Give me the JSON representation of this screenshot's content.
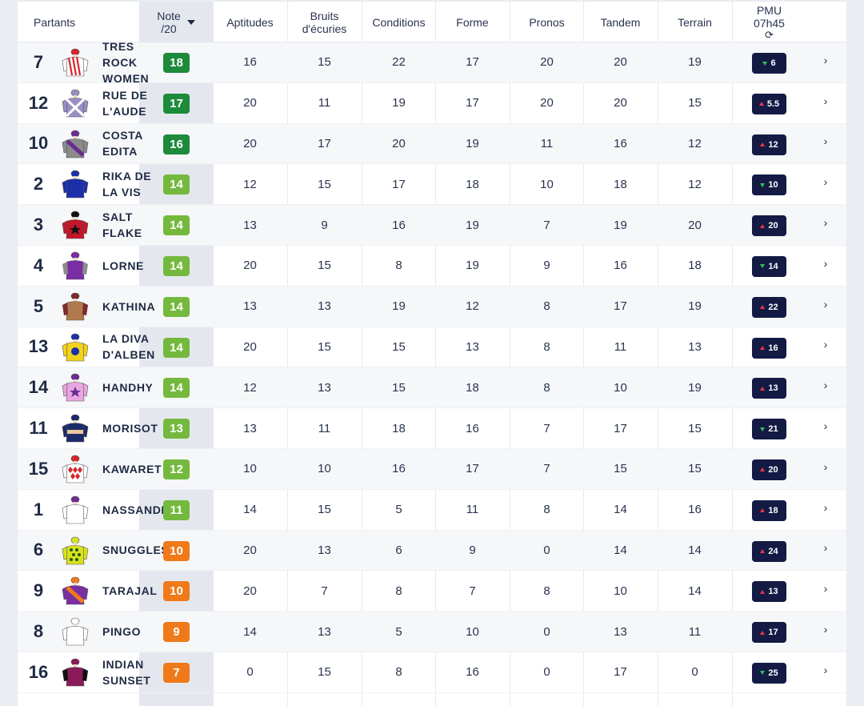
{
  "header": {
    "partants": "Partants",
    "note_line1": "Note",
    "note_line2": "/20",
    "aptitudes": "Aptitudes",
    "bruits_line1": "Bruits",
    "bruits_line2": "d'écuries",
    "conditions": "Conditions",
    "forme": "Forme",
    "pronos": "Pronos",
    "tandem": "Tandem",
    "terrain": "Terrain",
    "pmu_line1": "PMU",
    "pmu_line2": "07h45",
    "refresh_icon": "refresh-icon"
  },
  "colors": {
    "note_dark_green": "#1e8a3c",
    "note_green": "#74b93d",
    "note_orange": "#f07a1a",
    "odds_bg": "#131a44",
    "odds_up": "#e8364b",
    "odds_down": "#2fbf5a"
  },
  "runners": [
    {
      "num": "7",
      "name": "TRES ROCK WOMEN",
      "note": "18",
      "note_level": "dark",
      "aptitudes": "16",
      "bruits": "15",
      "conditions": "22",
      "forme": "17",
      "pronos": "20",
      "tandem": "20",
      "terrain": "19",
      "odds": "6",
      "trend": "down",
      "silk": {
        "body": "#ffffff",
        "stripe": "#d6262e",
        "cap": "#d6262e",
        "pattern": "stripes"
      }
    },
    {
      "num": "12",
      "name": "RUE DE L'AUDE",
      "note": "17",
      "note_level": "dark",
      "aptitudes": "20",
      "bruits": "11",
      "conditions": "19",
      "forme": "17",
      "pronos": "20",
      "tandem": "20",
      "terrain": "15",
      "odds": "5.5",
      "trend": "up",
      "silk": {
        "body": "#9a8fc4",
        "stripe": "#ffffff",
        "cap": "#9a8fc4",
        "pattern": "cross"
      }
    },
    {
      "num": "10",
      "name": "COSTA EDITA",
      "note": "16",
      "note_level": "dark",
      "aptitudes": "20",
      "bruits": "17",
      "conditions": "20",
      "forme": "19",
      "pronos": "11",
      "tandem": "16",
      "terrain": "12",
      "odds": "12",
      "trend": "up",
      "silk": {
        "body": "#8b8b8b",
        "stripe": "#6a2c91",
        "cap": "#6a2c91",
        "pattern": "sash"
      }
    },
    {
      "num": "2",
      "name": "RIKA DE LA VIS",
      "note": "14",
      "note_level": "green",
      "aptitudes": "12",
      "bruits": "15",
      "conditions": "17",
      "forme": "18",
      "pronos": "10",
      "tandem": "18",
      "terrain": "12",
      "odds": "10",
      "trend": "down",
      "silk": {
        "body": "#1a2fa8",
        "stripe": "#1a2fa8",
        "cap": "#1a2fa8",
        "pattern": "plain"
      }
    },
    {
      "num": "3",
      "name": "SALT FLAKE",
      "note": "14",
      "note_level": "green",
      "aptitudes": "13",
      "bruits": "9",
      "conditions": "16",
      "forme": "19",
      "pronos": "7",
      "tandem": "19",
      "terrain": "20",
      "odds": "20",
      "trend": "up",
      "silk": {
        "body": "#c4162a",
        "stripe": "#111111",
        "cap": "#111111",
        "pattern": "star"
      }
    },
    {
      "num": "4",
      "name": "LORNE",
      "note": "14",
      "note_level": "green",
      "aptitudes": "20",
      "bruits": "15",
      "conditions": "8",
      "forme": "19",
      "pronos": "9",
      "tandem": "16",
      "terrain": "18",
      "odds": "14",
      "trend": "down",
      "silk": {
        "body": "#7a2ea6",
        "stripe": "#8b8b8b",
        "cap": "#7a2ea6",
        "pattern": "sleeves"
      }
    },
    {
      "num": "5",
      "name": "KATHINA",
      "note": "14",
      "note_level": "green",
      "aptitudes": "13",
      "bruits": "13",
      "conditions": "19",
      "forme": "12",
      "pronos": "8",
      "tandem": "17",
      "terrain": "19",
      "odds": "22",
      "trend": "up",
      "silk": {
        "body": "#b07a4e",
        "stripe": "#7a2b2b",
        "cap": "#7a2b2b",
        "pattern": "sleeves"
      }
    },
    {
      "num": "13",
      "name": "LA DIVA D'ALBEN",
      "note": "14",
      "note_level": "green",
      "aptitudes": "20",
      "bruits": "15",
      "conditions": "15",
      "forme": "13",
      "pronos": "8",
      "tandem": "11",
      "terrain": "13",
      "odds": "16",
      "trend": "up",
      "silk": {
        "body": "#f2d21b",
        "stripe": "#1a2fa8",
        "cap": "#1a2fa8",
        "pattern": "disc"
      }
    },
    {
      "num": "14",
      "name": "HANDHY",
      "note": "14",
      "note_level": "green",
      "aptitudes": "12",
      "bruits": "13",
      "conditions": "15",
      "forme": "18",
      "pronos": "8",
      "tandem": "10",
      "terrain": "19",
      "odds": "13",
      "trend": "up",
      "silk": {
        "body": "#e9a6e0",
        "stripe": "#6a2c91",
        "cap": "#6a2c91",
        "pattern": "star"
      }
    },
    {
      "num": "11",
      "name": "MORISOT",
      "note": "13",
      "note_level": "green",
      "aptitudes": "13",
      "bruits": "11",
      "conditions": "18",
      "forme": "16",
      "pronos": "7",
      "tandem": "17",
      "terrain": "15",
      "odds": "21",
      "trend": "down",
      "silk": {
        "body": "#1b2a6b",
        "stripe": "#e9c9a0",
        "cap": "#1b2a6b",
        "pattern": "band"
      }
    },
    {
      "num": "15",
      "name": "KAWARET",
      "note": "12",
      "note_level": "green",
      "aptitudes": "10",
      "bruits": "10",
      "conditions": "16",
      "forme": "17",
      "pronos": "7",
      "tandem": "15",
      "terrain": "15",
      "odds": "20",
      "trend": "up",
      "silk": {
        "body": "#ffffff",
        "stripe": "#d6262e",
        "cap": "#d6262e",
        "pattern": "diamonds"
      }
    },
    {
      "num": "1",
      "name": "NASSANDI",
      "note": "11",
      "note_level": "green",
      "aptitudes": "14",
      "bruits": "15",
      "conditions": "5",
      "forme": "11",
      "pronos": "8",
      "tandem": "14",
      "terrain": "16",
      "odds": "18",
      "trend": "up",
      "silk": {
        "body": "#ffffff",
        "stripe": "#6a2c91",
        "cap": "#6a2c91",
        "pattern": "plain"
      }
    },
    {
      "num": "6",
      "name": "SNUGGLES",
      "note": "10",
      "note_level": "orange",
      "aptitudes": "20",
      "bruits": "13",
      "conditions": "6",
      "forme": "9",
      "pronos": "0",
      "tandem": "14",
      "terrain": "14",
      "odds": "24",
      "trend": "up",
      "silk": {
        "body": "#d8e21c",
        "stripe": "#1e5a1e",
        "cap": "#d8e21c",
        "pattern": "dots"
      }
    },
    {
      "num": "9",
      "name": "TARAJAL",
      "note": "10",
      "note_level": "orange",
      "aptitudes": "20",
      "bruits": "7",
      "conditions": "8",
      "forme": "7",
      "pronos": "8",
      "tandem": "10",
      "terrain": "14",
      "odds": "13",
      "trend": "up",
      "silk": {
        "body": "#7a2ea6",
        "stripe": "#f07a1a",
        "cap": "#f07a1a",
        "pattern": "sash"
      }
    },
    {
      "num": "8",
      "name": "PINGO",
      "note": "9",
      "note_level": "orange",
      "aptitudes": "14",
      "bruits": "13",
      "conditions": "5",
      "forme": "10",
      "pronos": "0",
      "tandem": "13",
      "terrain": "11",
      "odds": "17",
      "trend": "up",
      "silk": {
        "body": "#ffffff",
        "stripe": "#ffffff",
        "cap": "#ffffff",
        "pattern": "plain"
      }
    },
    {
      "num": "16",
      "name": "INDIAN SUNSET",
      "note": "7",
      "note_level": "orange",
      "aptitudes": "0",
      "bruits": "15",
      "conditions": "8",
      "forme": "16",
      "pronos": "0",
      "tandem": "17",
      "terrain": "0",
      "odds": "25",
      "trend": "down",
      "silk": {
        "body": "#8a1a5a",
        "stripe": "#111111",
        "cap": "#8a1a5a",
        "pattern": "sleeves"
      }
    }
  ]
}
